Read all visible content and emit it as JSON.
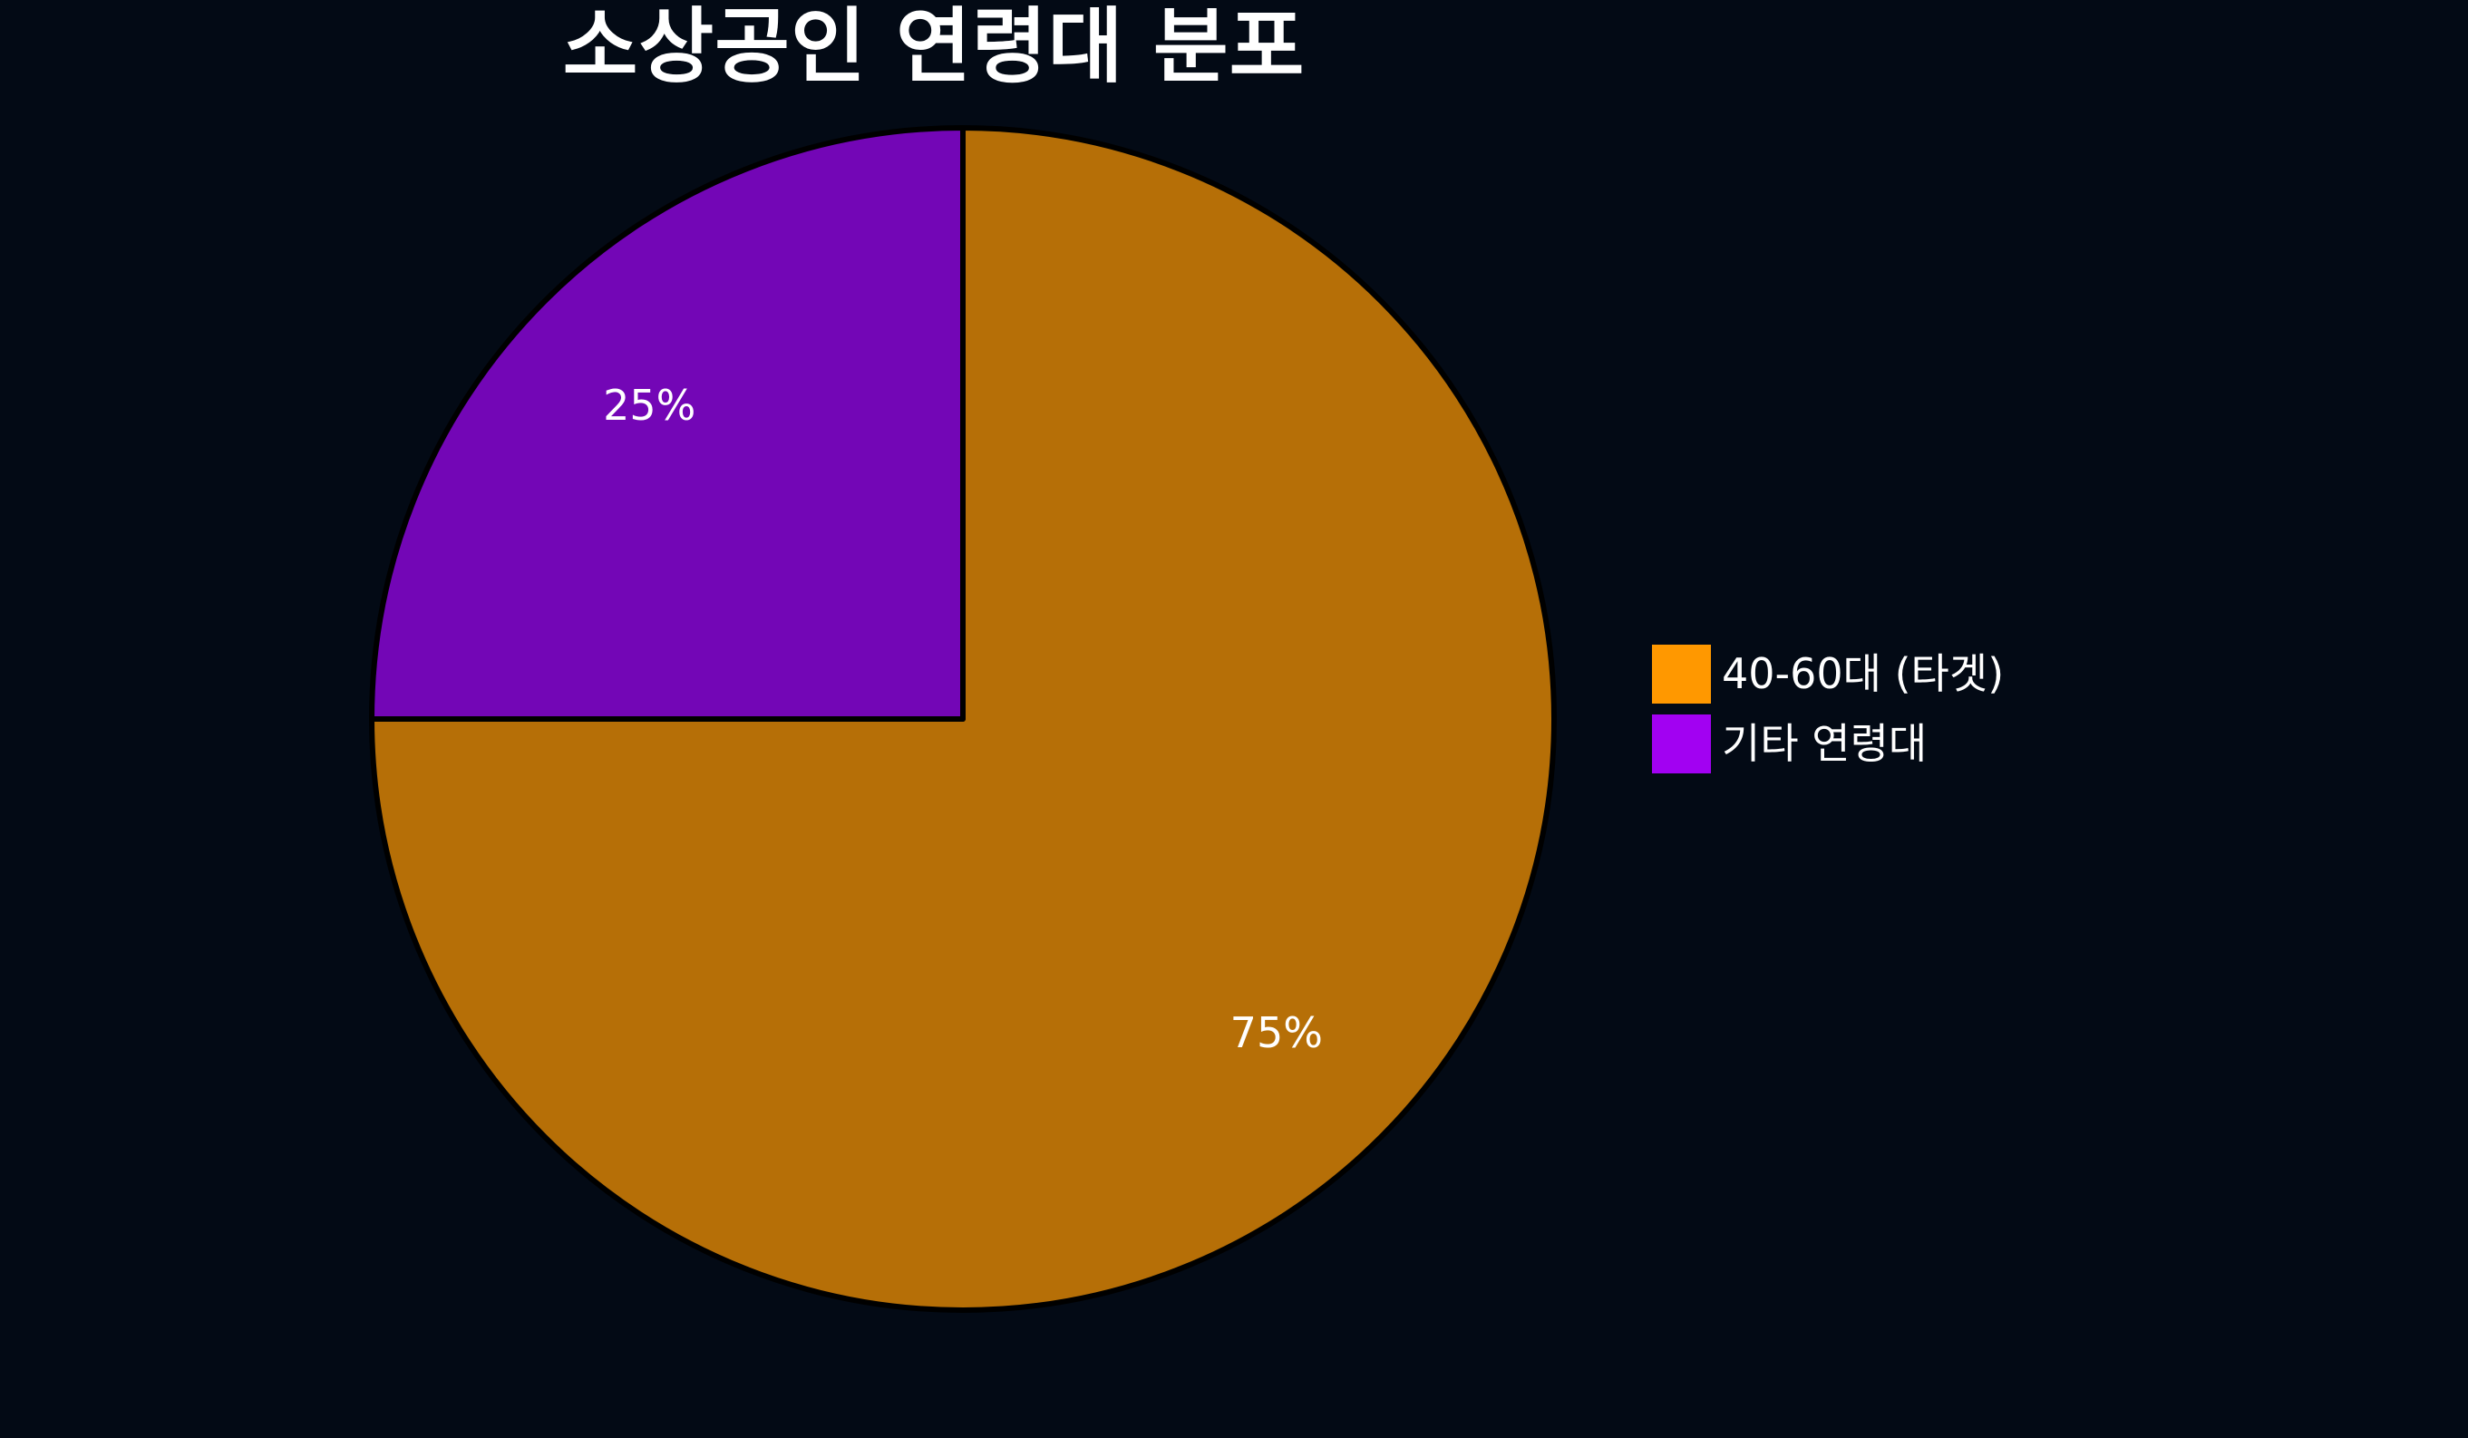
{
  "chart_data": {
    "type": "pie",
    "title": "소상공인 연령대 분포",
    "start_angle": 90,
    "direction": "clockwise",
    "pct_distance": 0.75,
    "edge_color": "#000000",
    "edge_width": 6,
    "background_color": "#030A15",
    "title_color": "#FFFFFF",
    "label_color": "#FFFFFF",
    "legend_position": "center-right",
    "slices": [
      {
        "label": "40-60대 (타겟)",
        "value": 75,
        "pct_label": "75%",
        "legend_color": "#FF9800",
        "wedge_color": "#B66F07"
      },
      {
        "label": "기타 연령대",
        "value": 25,
        "pct_label": "25%",
        "legend_color": "#A201F2",
        "wedge_color": "#7306B6"
      }
    ]
  }
}
